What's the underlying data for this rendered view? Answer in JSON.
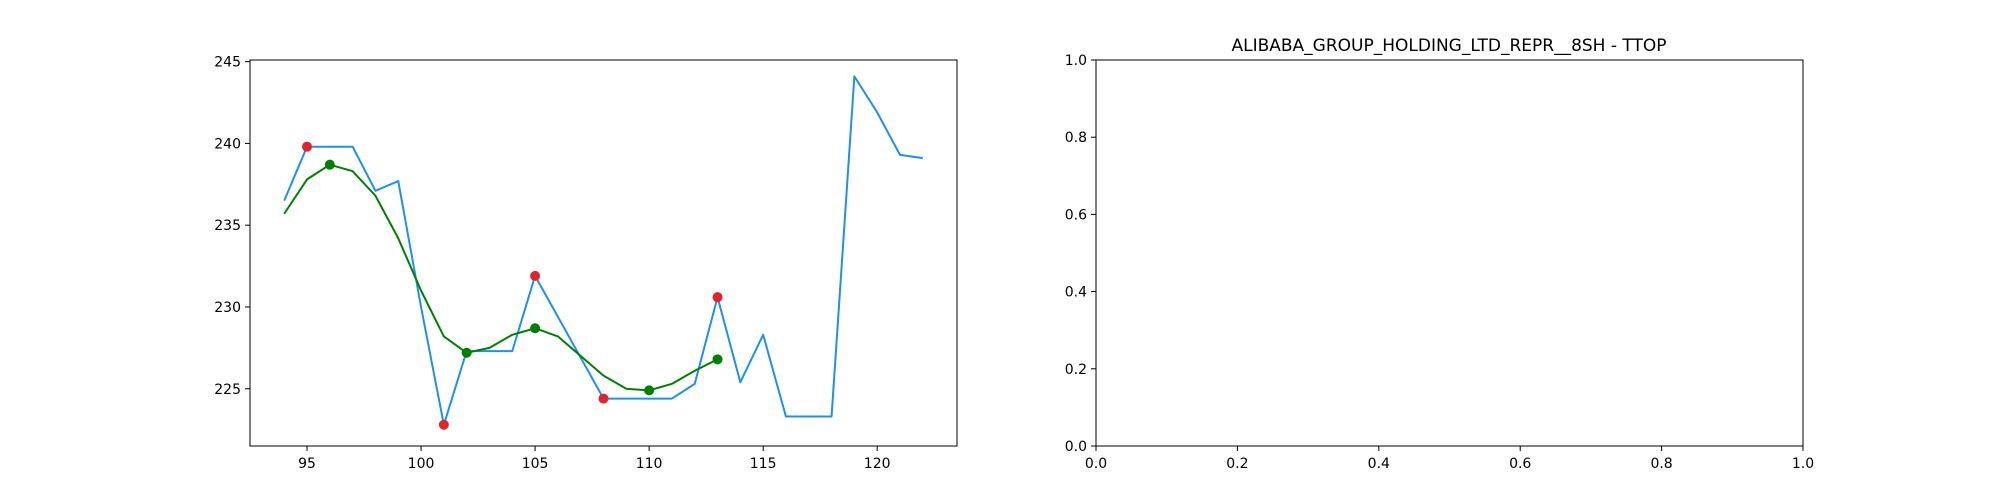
{
  "chart_data": [
    {
      "type": "line",
      "title": "",
      "xlabel": "",
      "ylabel": "",
      "xlim": [
        92.5,
        123.5
      ],
      "ylim": [
        221.5,
        245.1
      ],
      "xticks": [
        95,
        100,
        105,
        110,
        115,
        120
      ],
      "yticks": [
        225,
        230,
        235,
        240,
        245
      ],
      "grid": false,
      "series": [
        {
          "kind": "line",
          "color": "#1E90EE",
          "x": [
            94,
            95,
            96,
            97,
            98,
            99,
            100,
            101,
            102,
            103,
            104,
            105,
            106,
            107,
            108,
            109,
            110,
            111,
            112,
            113,
            114,
            115,
            116,
            117,
            118,
            119,
            120,
            121,
            122
          ],
          "y": [
            236.5,
            239.8,
            239.8,
            239.8,
            237.1,
            237.7,
            230.0,
            222.8,
            227.3,
            227.3,
            227.3,
            231.9,
            229.4,
            226.9,
            224.4,
            224.4,
            224.4,
            224.4,
            225.3,
            230.6,
            225.4,
            228.3,
            223.3,
            223.3,
            223.3,
            244.1,
            241.9,
            239.3,
            239.1
          ]
        },
        {
          "kind": "line",
          "color": "#008000",
          "x": [
            94,
            95,
            96,
            97,
            98,
            99,
            100,
            101,
            102,
            103,
            104,
            105,
            106,
            107,
            108,
            109,
            110,
            111,
            112,
            113
          ],
          "y": [
            235.7,
            237.8,
            238.7,
            238.3,
            236.8,
            234.2,
            231.0,
            228.2,
            227.2,
            227.5,
            228.3,
            228.7,
            228.2,
            227.0,
            225.8,
            225.0,
            224.9,
            225.3,
            226.1,
            226.8
          ]
        },
        {
          "kind": "scatter",
          "color": "#E0242A",
          "x": [
            95,
            101,
            105,
            108,
            113
          ],
          "y": [
            239.8,
            222.8,
            231.9,
            224.4,
            230.6
          ]
        },
        {
          "kind": "scatter",
          "color": "#008000",
          "x": [
            96,
            102,
            105,
            110,
            113
          ],
          "y": [
            238.7,
            227.2,
            228.7,
            224.9,
            226.8
          ]
        }
      ]
    },
    {
      "type": "line",
      "title": "ALIBABA_GROUP_HOLDING_LTD_REPR__8SH - TTOP",
      "xlabel": "",
      "ylabel": "",
      "xlim": [
        0,
        1
      ],
      "ylim": [
        0,
        1
      ],
      "xticks": [
        "0.0",
        "0.2",
        "0.4",
        "0.6",
        "0.8",
        "1.0"
      ],
      "yticks": [
        "0.0",
        "0.2",
        "0.4",
        "0.6",
        "0.8",
        "1.0"
      ],
      "grid": false,
      "series": []
    }
  ]
}
